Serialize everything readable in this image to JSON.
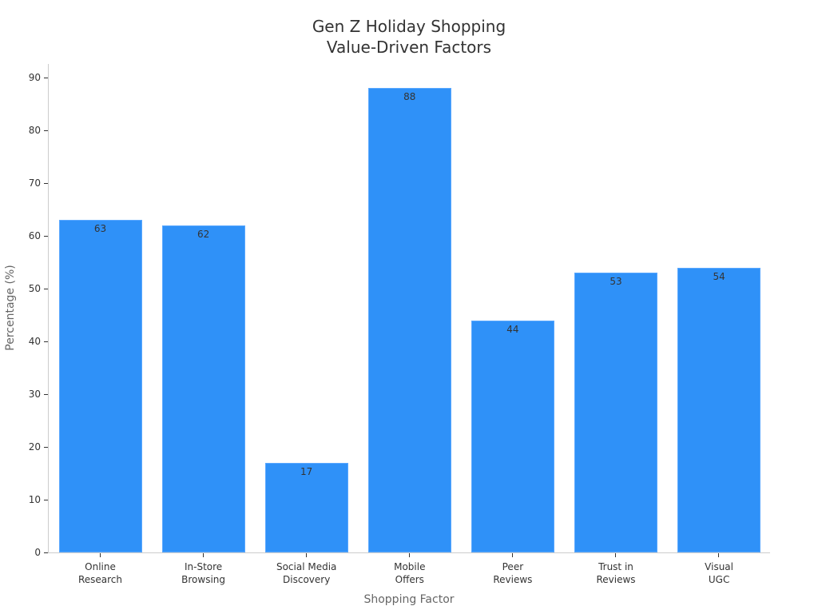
{
  "chart_data": {
    "type": "bar",
    "title": "Gen Z Holiday Shopping\nValue-Driven Factors",
    "title_lines": [
      "Gen Z Holiday Shopping",
      "Value-Driven Factors"
    ],
    "xlabel": "Shopping Factor",
    "ylabel": "Percentage (%)",
    "categories": [
      "Online\nResearch",
      "In-Store\nBrowsing",
      "Social Media\nDiscovery",
      "Mobile\nOffers",
      "Peer\nReviews",
      "Trust in\nReviews",
      "Visual\nUGC"
    ],
    "category_lines": [
      [
        "Online",
        "Research"
      ],
      [
        "In-Store",
        "Browsing"
      ],
      [
        "Social Media",
        "Discovery"
      ],
      [
        "Mobile",
        "Offers"
      ],
      [
        "Peer",
        "Reviews"
      ],
      [
        "Trust in",
        "Reviews"
      ],
      [
        "Visual",
        "UGC"
      ]
    ],
    "values": [
      63,
      62,
      17,
      88,
      44,
      53,
      54
    ],
    "data_labels": [
      "63",
      "62",
      "17",
      "88",
      "44",
      "53",
      "54"
    ],
    "ylim": [
      0,
      92
    ],
    "yticks": [
      0,
      10,
      20,
      30,
      40,
      50,
      60,
      70,
      80,
      90
    ],
    "grid": false,
    "legend": null,
    "bar_color": "#2f91f8"
  }
}
